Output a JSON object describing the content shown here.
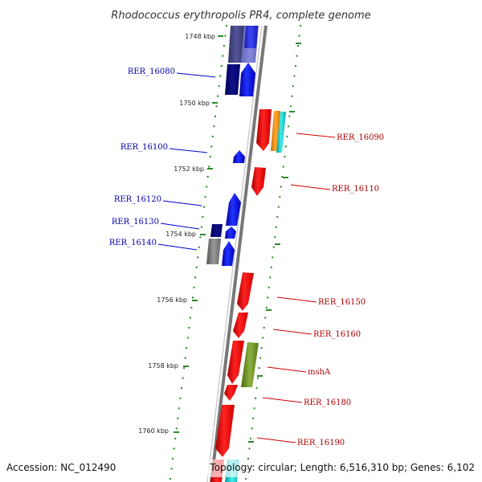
{
  "title": "Rhodococcus erythropolis PR4, complete genome",
  "footer": {
    "accession": "Accession: NC_012490",
    "topology": "Topology: circular; Length: 6,516,310 bp; Genes: 6,102"
  },
  "scale": {
    "unit": "kbp",
    "ticks": [
      "1748 kbp",
      "1750 kbp",
      "1752 kbp",
      "1754 kbp",
      "1756 kbp",
      "1758 kbp",
      "1760 kbp"
    ]
  },
  "colors": {
    "accent_blue_label": "#0000aa",
    "accent_red_label": "#aa0000",
    "backbone": "#888888",
    "dots": "#228822"
  },
  "genes_left": [
    {
      "label": "RER_16080",
      "color": "#0000cc"
    },
    {
      "label": "RER_16100",
      "color": "#0000cc"
    },
    {
      "label": "RER_16120",
      "color": "#0000cc"
    },
    {
      "label": "RER_16130",
      "color": "#0000cc"
    },
    {
      "label": "RER_16140",
      "color": "#0000cc"
    }
  ],
  "genes_right": [
    {
      "label": "RER_16090",
      "color": "#cc0000"
    },
    {
      "label": "RER_16110",
      "color": "#cc0000"
    },
    {
      "label": "RER_16150",
      "color": "#cc0000"
    },
    {
      "label": "RER_16160",
      "color": "#cc0000"
    },
    {
      "label": "mshA",
      "color": "#cc0000"
    },
    {
      "label": "RER_16180",
      "color": "#cc0000"
    },
    {
      "label": "RER_16190",
      "color": "#cc0000"
    }
  ]
}
